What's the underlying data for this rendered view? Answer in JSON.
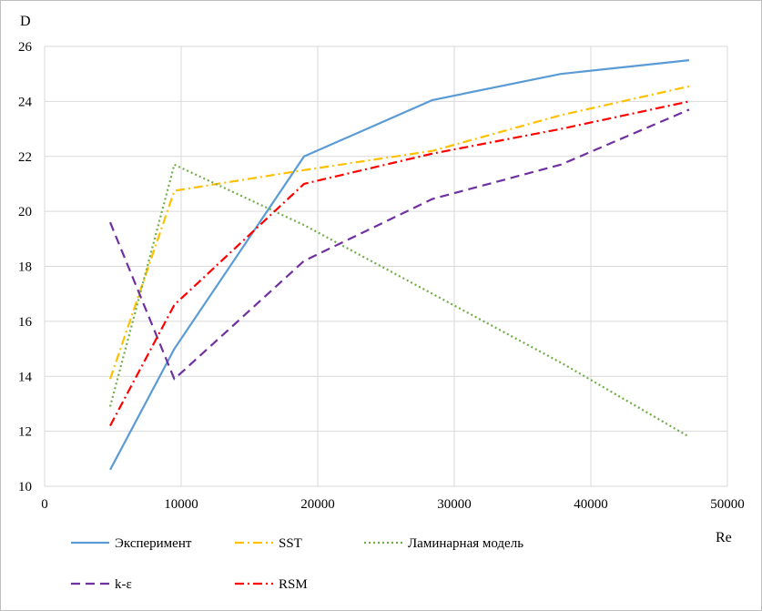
{
  "chart_data": {
    "type": "line",
    "title": "",
    "xlabel": "Re",
    "ylabel": "D",
    "xlim": [
      0,
      50000
    ],
    "ylim": [
      10,
      26
    ],
    "xticks": [
      0,
      10000,
      20000,
      30000,
      40000,
      50000
    ],
    "yticks": [
      10,
      12,
      14,
      16,
      18,
      20,
      22,
      24,
      26
    ],
    "grid": true,
    "legend_position": "bottom",
    "series": [
      {
        "name": "Эксперимент",
        "color": "#5b9bd5",
        "style": "solid",
        "x": [
          4800,
          9500,
          19000,
          28400,
          37800,
          47200
        ],
        "y": [
          10.6,
          15.0,
          22.0,
          24.05,
          25.0,
          25.5
        ]
      },
      {
        "name": "SST",
        "color": "#ffc000",
        "style": "dashdot",
        "x": [
          4800,
          9500,
          19000,
          28400,
          37800,
          47200
        ],
        "y": [
          13.9,
          20.75,
          21.5,
          22.2,
          23.5,
          24.55
        ]
      },
      {
        "name": "Ламинарная модель",
        "color": "#70ad47",
        "style": "dotted",
        "x": [
          4800,
          9500,
          19000,
          28400,
          37800,
          47200
        ],
        "y": [
          12.9,
          21.7,
          19.5,
          17.0,
          14.5,
          11.8
        ]
      },
      {
        "name": "k-ε",
        "color": "#7030a0",
        "style": "dashed",
        "x": [
          4800,
          9500,
          19000,
          28400,
          37800,
          47200
        ],
        "y": [
          19.6,
          13.9,
          18.2,
          20.45,
          21.7,
          23.7
        ]
      },
      {
        "name": "RSM",
        "color": "#ff0000",
        "style": "dashdot",
        "x": [
          4800,
          9500,
          19000,
          28400,
          37800,
          47200
        ],
        "y": [
          12.2,
          16.6,
          21.0,
          22.1,
          23.0,
          24.0
        ]
      }
    ]
  }
}
